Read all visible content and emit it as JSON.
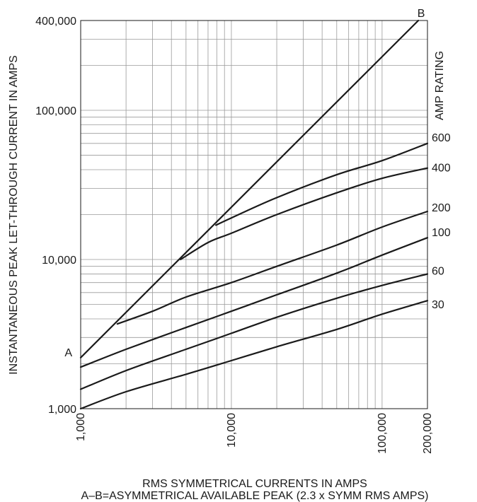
{
  "chart_data": {
    "type": "line",
    "xscale": "log",
    "yscale": "log",
    "xlim": [
      1000,
      200000
    ],
    "ylim": [
      1000,
      400000
    ],
    "grid": true,
    "xlabel": "RMS SYMMETRICAL CURRENTS IN AMPS",
    "xlabel2": "A–B=ASYMMETRICAL AVAILABLE PEAK (2.3 x SYMM RMS AMPS)",
    "ylabel": "INSTANTANEOUS PEAK LET-THROUGH CURRENT IN AMPS",
    "legend_title": "AMP RATING",
    "x_tick_labels": [
      {
        "value": 1000,
        "label": "1,000"
      },
      {
        "value": 10000,
        "label": "10,000"
      },
      {
        "value": 100000,
        "label": "100,000"
      },
      {
        "value": 200000,
        "label": "200,000"
      }
    ],
    "y_tick_labels": [
      {
        "value": 1000,
        "label": "1,000"
      },
      {
        "value": 10000,
        "label": "10,000"
      },
      {
        "value": 100000,
        "label": "100,000"
      },
      {
        "value": 400000,
        "label": "400,000"
      }
    ],
    "series": [
      {
        "name": "A–B",
        "start_label": "A",
        "end_label": "B",
        "x": [
          1000,
          174000
        ],
        "y": [
          2200,
          400000
        ]
      },
      {
        "name": "600",
        "x": [
          7900,
          10000,
          20000,
          50000,
          100000,
          200000
        ],
        "y": [
          17000,
          19000,
          26000,
          37000,
          46000,
          60000
        ]
      },
      {
        "name": "400",
        "x": [
          4600,
          7000,
          10000,
          20000,
          50000,
          100000,
          200000
        ],
        "y": [
          10000,
          13000,
          15000,
          20000,
          28000,
          35000,
          41000
        ]
      },
      {
        "name": "200",
        "x": [
          1750,
          3000,
          5000,
          10000,
          20000,
          50000,
          100000,
          200000
        ],
        "y": [
          3700,
          4500,
          5600,
          7000,
          9000,
          12500,
          16500,
          21000
        ]
      },
      {
        "name": "100",
        "x": [
          1000,
          2000,
          5000,
          10000,
          20000,
          50000,
          100000,
          200000
        ],
        "y": [
          1900,
          2500,
          3500,
          4500,
          5800,
          8100,
          10700,
          14000
        ]
      },
      {
        "name": "60",
        "x": [
          1000,
          2000,
          5000,
          10000,
          20000,
          50000,
          100000,
          200000
        ],
        "y": [
          1350,
          1800,
          2500,
          3200,
          4100,
          5500,
          6700,
          8000
        ]
      },
      {
        "name": "30",
        "x": [
          1000,
          2000,
          5000,
          10000,
          20000,
          50000,
          100000,
          200000
        ],
        "y": [
          1000,
          1300,
          1700,
          2100,
          2600,
          3400,
          4300,
          5300
        ]
      }
    ]
  }
}
